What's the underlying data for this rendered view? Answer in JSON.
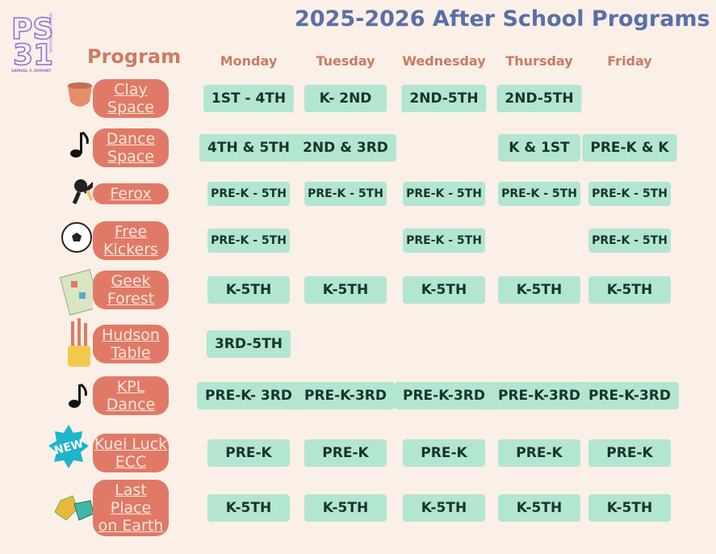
{
  "logo": {
    "letters_top": "PS",
    "letters_bottom": "31",
    "side_text": "GREENPOINT BROOKLYN",
    "bottom_text": "SAMUEL F. DUPONT"
  },
  "title": "2025-2026 After School Programs",
  "program_header": "Program",
  "days": [
    "Monday",
    "Tuesday",
    "Wednesday",
    "Thursday",
    "Friday"
  ],
  "new_badge": "NEW",
  "rows": [
    {
      "name": [
        "Clay",
        "Space"
      ],
      "cells": [
        "1ST - 4TH",
        "K- 2ND",
        "2ND-5TH",
        "2ND-5TH",
        null
      ]
    },
    {
      "name": [
        "Dance",
        "Space"
      ],
      "cells": [
        "4TH & 5TH",
        "2ND & 3RD",
        null,
        "K & 1ST",
        "PRE-K & K"
      ]
    },
    {
      "name": [
        "Ferox"
      ],
      "cells": [
        "PRE-K - 5TH",
        "PRE-K - 5TH",
        "PRE-K - 5TH",
        "PRE-K - 5TH",
        "PRE-K - 5TH"
      ]
    },
    {
      "name": [
        "Free",
        "Kickers"
      ],
      "cells": [
        "PRE-K - 5TH",
        null,
        "PRE-K - 5TH",
        null,
        "PRE-K - 5TH"
      ]
    },
    {
      "name": [
        "Geek",
        "Forest"
      ],
      "cells": [
        "K-5TH",
        "K-5TH",
        "K-5TH",
        "K-5TH",
        "K-5TH"
      ]
    },
    {
      "name": [
        "Hudson",
        "Table"
      ],
      "cells": [
        "3RD-5TH",
        null,
        null,
        null,
        null
      ]
    },
    {
      "name": [
        "KPL",
        "Dance"
      ],
      "cells": [
        "PRE-K- 3RD",
        "PRE-K-3RD",
        "PRE-K-3RD",
        "PRE-K-3RD",
        "PRE-K-3RD"
      ]
    },
    {
      "name": [
        "Kuei Luck",
        "ECC"
      ],
      "cells": [
        "PRE-K",
        "PRE-K",
        "PRE-K",
        "PRE-K",
        "PRE-K"
      ]
    },
    {
      "name": [
        "Last Place",
        "on Earth"
      ],
      "cells": [
        "K-5TH",
        "K-5TH",
        "K-5TH",
        "K-5TH",
        "K-5TH"
      ]
    }
  ]
}
